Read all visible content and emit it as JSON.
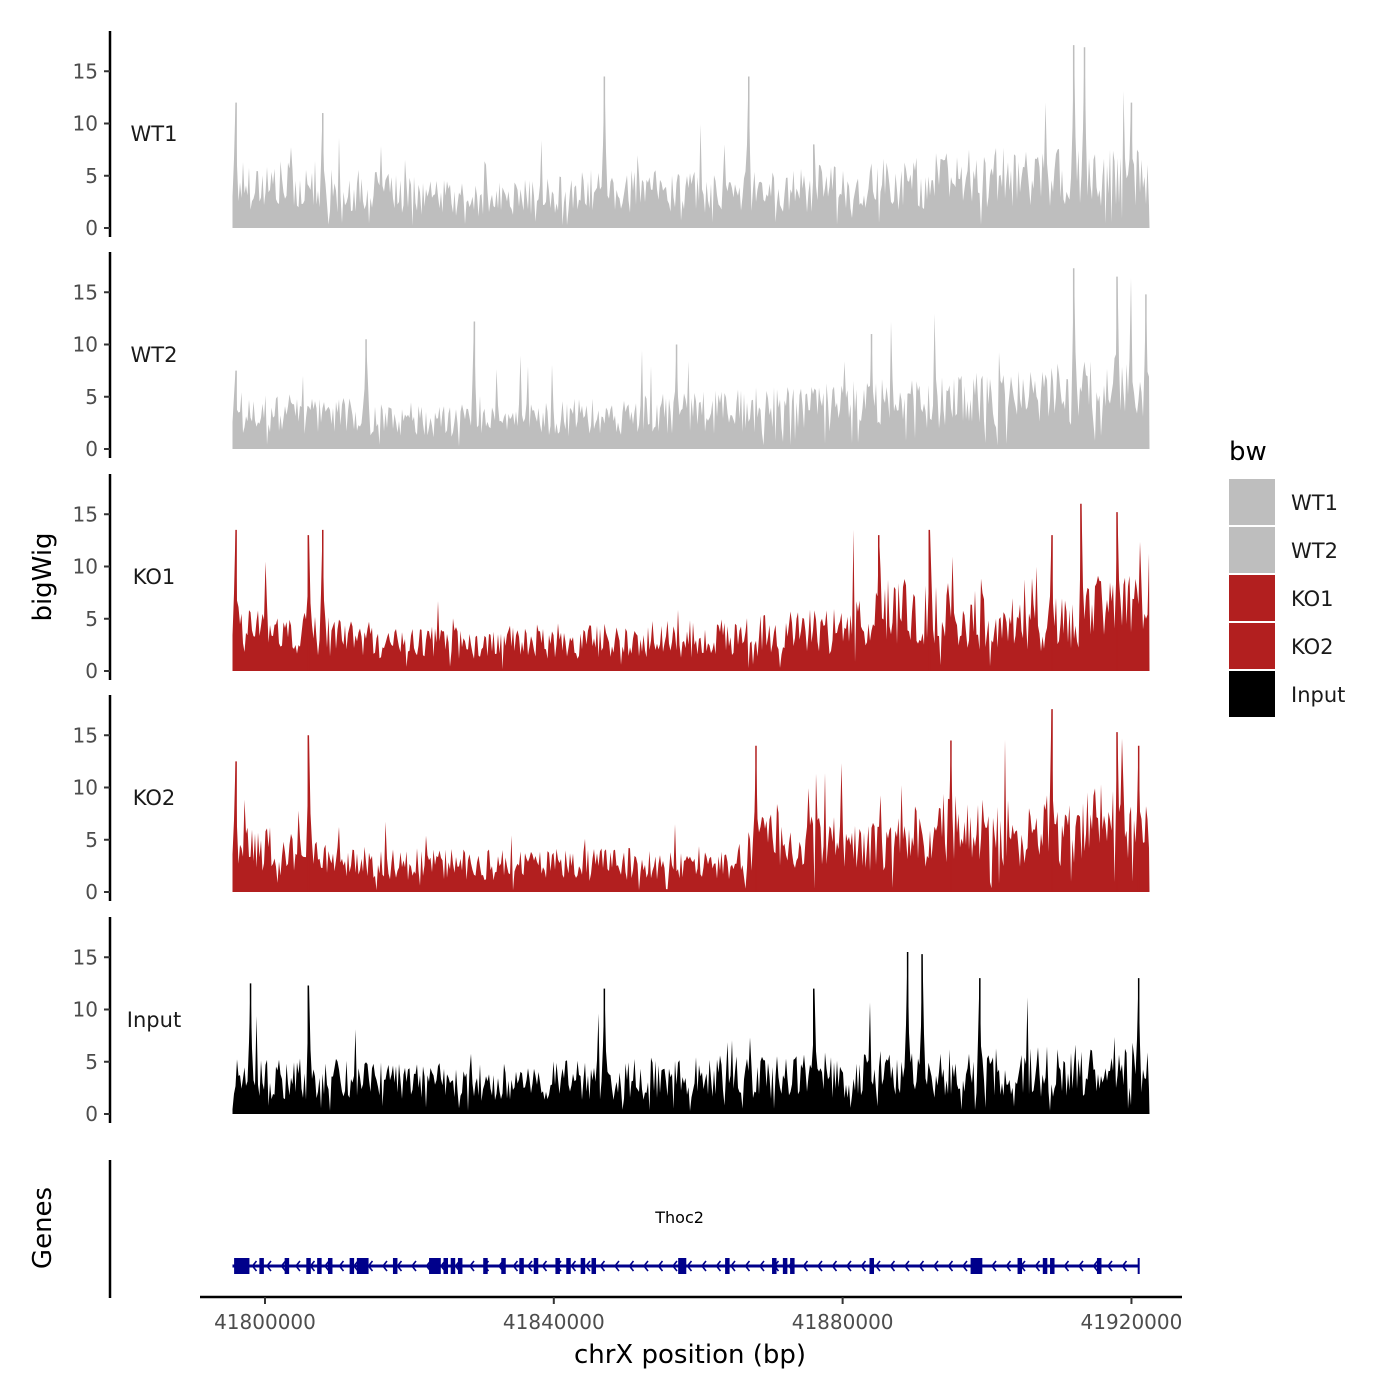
{
  "chart_data": {
    "type": "area",
    "ylabel": "bigWig",
    "xlabel": "chrX position (bp)",
    "xlim": [
      41791000,
      41927000
    ],
    "data_range": [
      41795500,
      41922500
    ],
    "x_ticks": [
      41800000,
      41840000,
      41880000,
      41920000
    ],
    "x_tick_labels": [
      "41800000",
      "41840000",
      "41880000",
      "41920000"
    ],
    "ylim": [
      0,
      19
    ],
    "y_ticks": [
      0,
      5,
      10,
      15
    ],
    "y_tick_labels": [
      "0",
      "5",
      "10",
      "15"
    ],
    "tracks": [
      {
        "name": "WT1",
        "color": "#bebebe",
        "baseline": 2.5,
        "profile": [
          {
            "x": 41795500,
            "y": 5
          },
          {
            "x": 41830000,
            "y": 3
          },
          {
            "x": 41845000,
            "y": 4
          },
          {
            "x": 41870000,
            "y": 4
          },
          {
            "x": 41900000,
            "y": 5.5
          },
          {
            "x": 41922500,
            "y": 5.5
          }
        ],
        "peaks": [
          {
            "x": 41796000,
            "y": 12
          },
          {
            "x": 41808000,
            "y": 11
          },
          {
            "x": 41847000,
            "y": 14.5
          },
          {
            "x": 41867000,
            "y": 14.5
          },
          {
            "x": 41876000,
            "y": 8
          },
          {
            "x": 41912000,
            "y": 17.5
          },
          {
            "x": 41913500,
            "y": 17.3
          },
          {
            "x": 41920000,
            "y": 12
          }
        ]
      },
      {
        "name": "WT2",
        "color": "#bebebe",
        "baseline": 2.5,
        "profile": [
          {
            "x": 41795500,
            "y": 4
          },
          {
            "x": 41830000,
            "y": 3
          },
          {
            "x": 41860000,
            "y": 4
          },
          {
            "x": 41890000,
            "y": 5
          },
          {
            "x": 41922500,
            "y": 6.5
          }
        ],
        "peaks": [
          {
            "x": 41796000,
            "y": 7.5
          },
          {
            "x": 41814000,
            "y": 10.5
          },
          {
            "x": 41829000,
            "y": 12.2
          },
          {
            "x": 41857000,
            "y": 10
          },
          {
            "x": 41884000,
            "y": 11
          },
          {
            "x": 41912000,
            "y": 17.3
          },
          {
            "x": 41918000,
            "y": 16.5
          },
          {
            "x": 41922000,
            "y": 14.8
          }
        ]
      },
      {
        "name": "KO1",
        "color": "#b21f1f",
        "baseline": 2.5,
        "profile": [
          {
            "x": 41795500,
            "y": 5
          },
          {
            "x": 41820000,
            "y": 3
          },
          {
            "x": 41860000,
            "y": 3.5
          },
          {
            "x": 41880000,
            "y": 4.5
          },
          {
            "x": 41885000,
            "y": 7
          },
          {
            "x": 41895000,
            "y": 6
          },
          {
            "x": 41910000,
            "y": 5
          },
          {
            "x": 41916000,
            "y": 8
          },
          {
            "x": 41922500,
            "y": 6
          }
        ],
        "peaks": [
          {
            "x": 41796000,
            "y": 13.5
          },
          {
            "x": 41806000,
            "y": 13
          },
          {
            "x": 41808000,
            "y": 13.5
          },
          {
            "x": 41885000,
            "y": 13
          },
          {
            "x": 41892000,
            "y": 13.5
          },
          {
            "x": 41909000,
            "y": 13
          },
          {
            "x": 41913000,
            "y": 16
          },
          {
            "x": 41918000,
            "y": 15.2
          }
        ]
      },
      {
        "name": "KO2",
        "color": "#b21f1f",
        "baseline": 2.5,
        "profile": [
          {
            "x": 41795500,
            "y": 5
          },
          {
            "x": 41815000,
            "y": 3
          },
          {
            "x": 41865000,
            "y": 3
          },
          {
            "x": 41870000,
            "y": 6
          },
          {
            "x": 41885000,
            "y": 5
          },
          {
            "x": 41895000,
            "y": 7
          },
          {
            "x": 41910000,
            "y": 6
          },
          {
            "x": 41916000,
            "y": 8
          },
          {
            "x": 41922500,
            "y": 7
          }
        ],
        "peaks": [
          {
            "x": 41796000,
            "y": 12.5
          },
          {
            "x": 41806000,
            "y": 15
          },
          {
            "x": 41868000,
            "y": 14
          },
          {
            "x": 41895000,
            "y": 14.5
          },
          {
            "x": 41909000,
            "y": 17.5
          },
          {
            "x": 41918000,
            "y": 15.3
          },
          {
            "x": 41921000,
            "y": 14
          }
        ]
      },
      {
        "name": "Input",
        "color": "#000000",
        "baseline": 2.5,
        "profile": [
          {
            "x": 41795500,
            "y": 4
          },
          {
            "x": 41830000,
            "y": 3.5
          },
          {
            "x": 41860000,
            "y": 4
          },
          {
            "x": 41900000,
            "y": 4.5
          },
          {
            "x": 41922500,
            "y": 5
          }
        ],
        "peaks": [
          {
            "x": 41798000,
            "y": 12.5
          },
          {
            "x": 41806000,
            "y": 12.3
          },
          {
            "x": 41847000,
            "y": 12
          },
          {
            "x": 41876000,
            "y": 12
          },
          {
            "x": 41889000,
            "y": 15.5
          },
          {
            "x": 41891000,
            "y": 15.3
          },
          {
            "x": 41899000,
            "y": 13
          },
          {
            "x": 41921000,
            "y": 13
          }
        ]
      }
    ],
    "genes_track": {
      "label": "Genes",
      "color": "#00008b",
      "genes": [
        {
          "name": "Thoc2",
          "start": 41795500,
          "end": 41921000,
          "strand": "-",
          "exons": [
            41796000,
            41796500,
            41797000,
            41797500,
            41799500,
            41803000,
            41806000,
            41807500,
            41809000,
            41812000,
            41813000,
            41813500,
            41814000,
            41818000,
            41823000,
            41823500,
            41824000,
            41825000,
            41826000,
            41827000,
            41830500,
            41833000,
            41835500,
            41837500,
            41840500,
            41842000,
            41844000,
            41845500,
            41857500,
            41858000,
            41864000,
            41870500,
            41872000,
            41873000,
            41884000,
            41898000,
            41898500,
            41899000,
            41904500,
            41908000,
            41909000,
            41915500
          ]
        }
      ]
    },
    "legend": {
      "title": "bw",
      "position": "right",
      "items": [
        {
          "label": "WT1",
          "color": "#bebebe"
        },
        {
          "label": "WT2",
          "color": "#bebebe"
        },
        {
          "label": "KO1",
          "color": "#b21f1f"
        },
        {
          "label": "KO2",
          "color": "#b21f1f"
        },
        {
          "label": "Input",
          "color": "#000000"
        }
      ]
    }
  }
}
